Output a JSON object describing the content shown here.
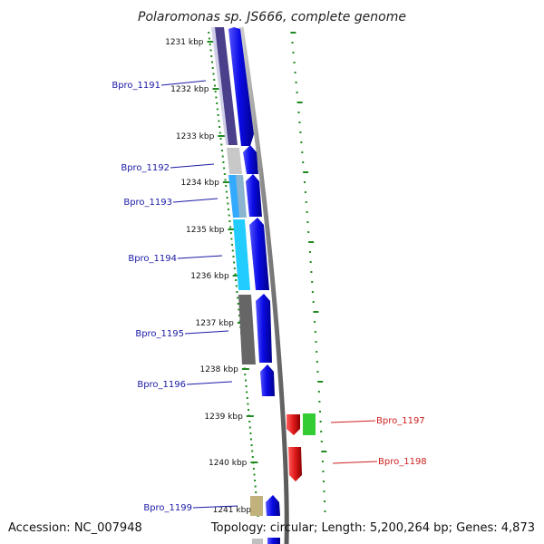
{
  "title": "Polaromonas sp. JS666, complete genome",
  "kbp_ticks": [
    "1231 kbp",
    "1232 kbp",
    "1233 kbp",
    "1234 kbp",
    "1235 kbp",
    "1236 kbp",
    "1237 kbp",
    "1238 kbp",
    "1239 kbp",
    "1240 kbp",
    "1241 kbp"
  ],
  "gene_labels_left": [
    "Bpro_1191",
    "Bpro_1192",
    "Bpro_1193",
    "Bpro_1194",
    "Bpro_1195",
    "Bpro_1196",
    "Bpro_1199"
  ],
  "gene_labels_right": [
    "Bpro_1197",
    "Bpro_1198"
  ],
  "footer": {
    "accession": "Accession: NC_007948",
    "topology": "Topology: circular; Length: 5,200,264 bp; Genes: 4,873"
  },
  "colors": {
    "forward_gene": "#0a0ae6",
    "reverse_gene": "#e01a1a",
    "backbone": "#888888",
    "tick": "#1f8a1f",
    "label_blue": "#1a1aa6",
    "label_red": "#cc1f1f"
  }
}
